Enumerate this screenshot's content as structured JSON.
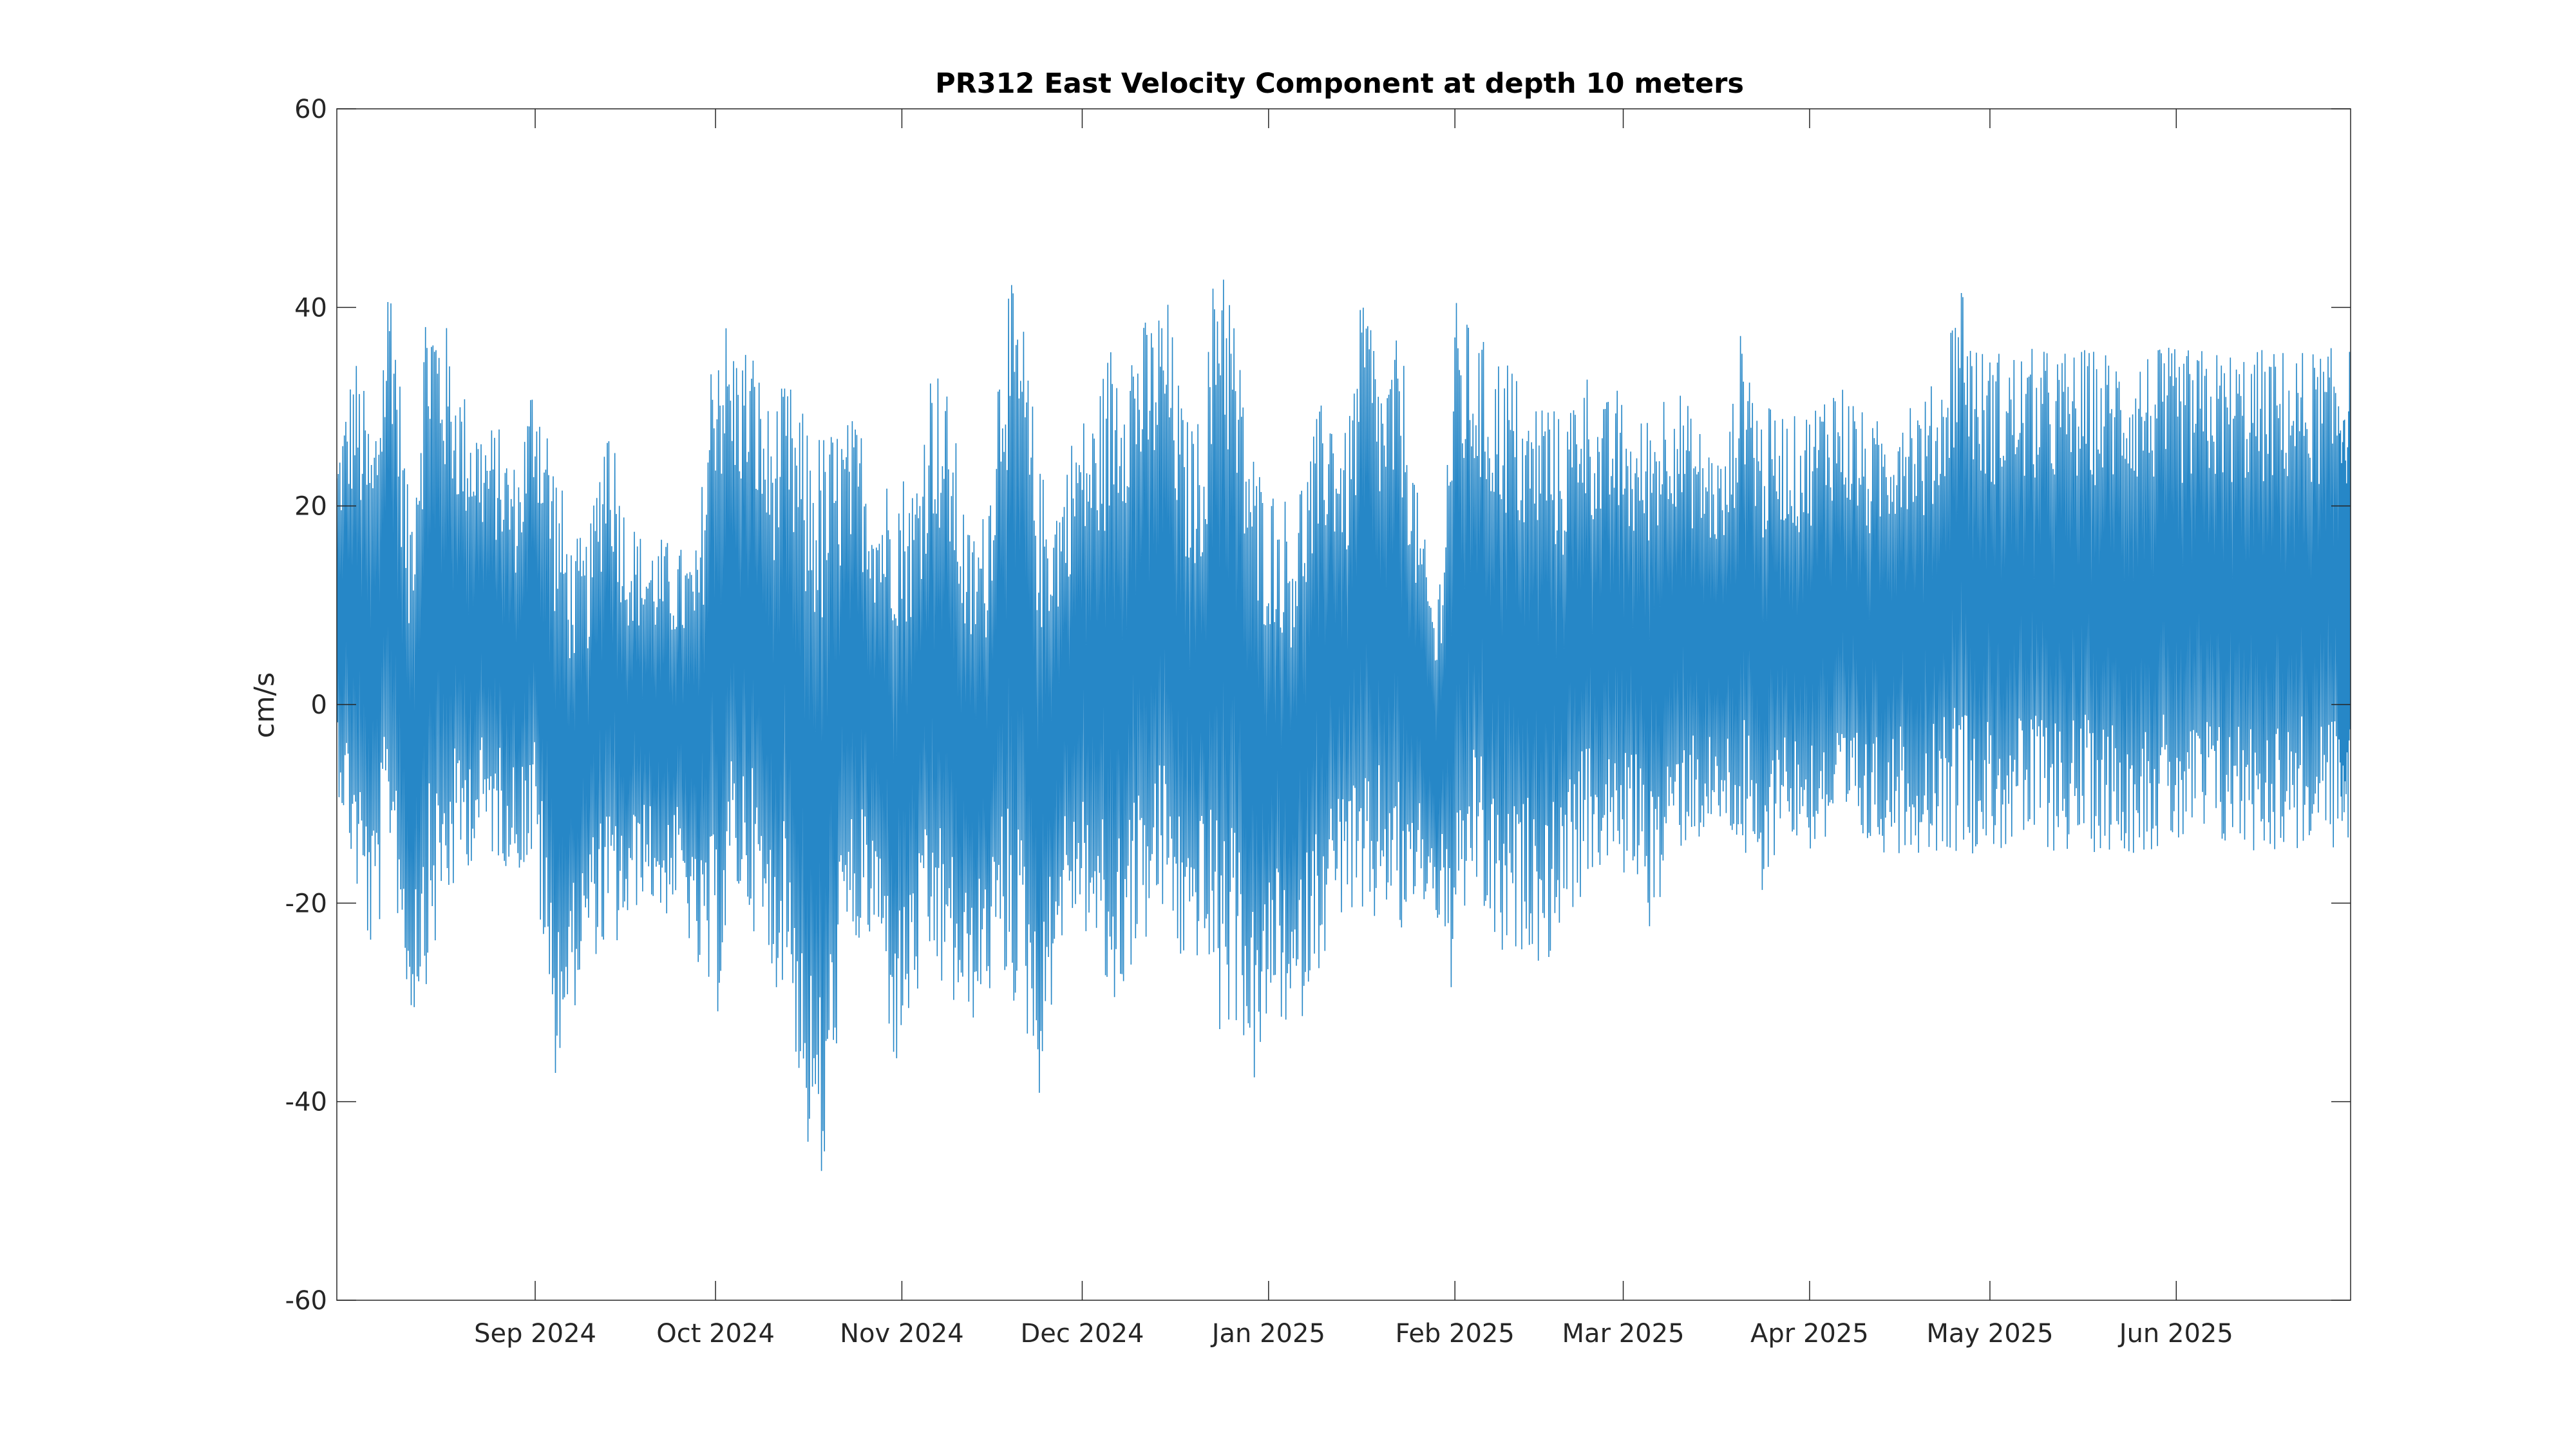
{
  "chart_data": {
    "type": "line",
    "title": "PR312 East Velocity Component at depth 10 meters",
    "xlabel": "",
    "ylabel": "cm/s",
    "ylim": [
      -60,
      60
    ],
    "xlim": [
      "2024-07-30",
      "2025-06-30"
    ],
    "yticks": [
      60,
      40,
      20,
      0,
      -20,
      -40,
      -60
    ],
    "xticks": [
      {
        "date": "2024-09-01",
        "label": "Sep 2024"
      },
      {
        "date": "2024-10-01",
        "label": "Oct 2024"
      },
      {
        "date": "2024-11-01",
        "label": "Nov 2024"
      },
      {
        "date": "2024-12-01",
        "label": "Dec 2024"
      },
      {
        "date": "2025-01-01",
        "label": "Jan 2025"
      },
      {
        "date": "2025-02-01",
        "label": "Feb 2025"
      },
      {
        "date": "2025-03-01",
        "label": "Mar 2025"
      },
      {
        "date": "2025-04-01",
        "label": "Apr 2025"
      },
      {
        "date": "2025-05-01",
        "label": "May 2025"
      },
      {
        "date": "2025-06-01",
        "label": "Jun 2025"
      }
    ],
    "grid": false,
    "line_color": "#0072BD",
    "series": [
      {
        "name": "",
        "x": [
          "2024-07-30",
          "2024-08-02",
          "2024-08-05",
          "2024-08-08",
          "2024-08-11",
          "2024-08-14",
          "2024-08-17",
          "2024-08-20",
          "2024-08-23",
          "2024-08-26",
          "2024-08-29",
          "2024-09-01",
          "2024-09-04",
          "2024-09-07",
          "2024-09-10",
          "2024-09-13",
          "2024-09-16",
          "2024-09-19",
          "2024-09-22",
          "2024-09-25",
          "2024-09-28",
          "2024-10-01",
          "2024-10-04",
          "2024-10-07",
          "2024-10-10",
          "2024-10-13",
          "2024-10-16",
          "2024-10-19",
          "2024-10-22",
          "2024-10-25",
          "2024-10-28",
          "2024-10-31",
          "2024-11-03",
          "2024-11-06",
          "2024-11-09",
          "2024-11-12",
          "2024-11-15",
          "2024-11-18",
          "2024-11-21",
          "2024-11-24",
          "2024-11-27",
          "2024-11-30",
          "2024-12-03",
          "2024-12-06",
          "2024-12-09",
          "2024-12-12",
          "2024-12-15",
          "2024-12-18",
          "2024-12-21",
          "2024-12-24",
          "2024-12-27",
          "2024-12-30",
          "2025-01-02",
          "2025-01-05",
          "2025-01-08",
          "2025-01-11",
          "2025-01-14",
          "2025-01-17",
          "2025-01-20",
          "2025-01-23",
          "2025-01-26",
          "2025-01-29",
          "2025-02-01",
          "2025-02-04",
          "2025-02-07",
          "2025-02-10",
          "2025-02-13",
          "2025-02-16",
          "2025-02-19",
          "2025-02-22",
          "2025-02-25",
          "2025-02-28",
          "2025-03-03",
          "2025-03-06",
          "2025-03-09",
          "2025-03-12",
          "2025-03-15",
          "2025-03-18",
          "2025-03-21",
          "2025-03-24",
          "2025-03-27",
          "2025-03-30",
          "2025-04-02",
          "2025-04-05",
          "2025-04-08",
          "2025-04-11",
          "2025-04-14",
          "2025-04-17",
          "2025-04-20",
          "2025-04-23",
          "2025-04-26",
          "2025-04-29",
          "2025-05-02",
          "2025-05-05",
          "2025-05-08",
          "2025-05-11",
          "2025-05-14",
          "2025-05-17",
          "2025-05-20",
          "2025-05-23",
          "2025-05-26",
          "2025-05-29",
          "2025-06-01",
          "2025-06-04",
          "2025-06-07",
          "2025-06-10",
          "2025-06-13",
          "2025-06-16",
          "2025-06-19",
          "2025-06-22",
          "2025-06-25",
          "2025-06-28",
          "2025-06-30"
        ],
        "y_max": [
          26,
          36,
          28,
          47,
          20,
          44,
          39,
          32,
          29,
          28,
          24,
          36,
          27,
          17,
          17,
          33,
          20,
          17,
          17,
          16,
          16,
          43,
          37,
          37,
          30,
          33,
          29,
          28,
          29,
          29,
          22,
          25,
          23,
          36,
          31,
          18,
          20,
          44,
          40,
          24,
          22,
          29,
          30,
          38,
          39,
          39,
          42,
          29,
          29,
          53,
          36,
          25,
          22,
          21,
          27,
          33,
          27,
          44,
          33,
          38,
          20,
          10,
          41,
          38,
          36,
          36,
          30,
          33,
          28,
          36,
          30,
          32,
          28,
          31,
          34,
          30,
          27,
          25,
          40,
          30,
          30,
          29,
          31,
          34,
          32,
          28,
          30,
          33,
          31,
          34,
          45,
          36,
          36,
          36,
          36,
          36,
          36,
          36,
          36,
          36,
          36,
          36,
          36,
          36,
          36,
          36,
          36,
          36,
          36,
          36,
          36,
          36,
          36
        ],
        "y_min": [
          -8,
          -19,
          -27,
          -15,
          -33,
          -28,
          -22,
          -17,
          -15,
          -16,
          -17,
          -17,
          -38,
          -32,
          -25,
          -26,
          -24,
          -19,
          -22,
          -20,
          -28,
          -33,
          -20,
          -22,
          -29,
          -28,
          -45,
          -51,
          -28,
          -25,
          -25,
          -38,
          -31,
          -28,
          -31,
          -33,
          -30,
          -29,
          -32,
          -40,
          -25,
          -22,
          -25,
          -33,
          -27,
          -24,
          -22,
          -28,
          -25,
          -35,
          -32,
          -40,
          -30,
          -36,
          -28,
          -25,
          -20,
          -27,
          -20,
          -25,
          -20,
          -22,
          -32,
          -18,
          -25,
          -28,
          -24,
          -27,
          -22,
          -20,
          -17,
          -18,
          -17,
          -24,
          -16,
          -14,
          -14,
          -13,
          -16,
          -23,
          -12,
          -15,
          -15,
          -15,
          -15,
          -15,
          -15,
          -15,
          -15,
          -15,
          -15,
          -15,
          -15,
          -15,
          -15,
          -15,
          -15,
          -15,
          -15,
          -15,
          -15,
          -15,
          -15,
          -15,
          -15,
          -15,
          -15,
          -15,
          -15,
          -15,
          -15,
          -15,
          -15
        ]
      }
    ]
  }
}
